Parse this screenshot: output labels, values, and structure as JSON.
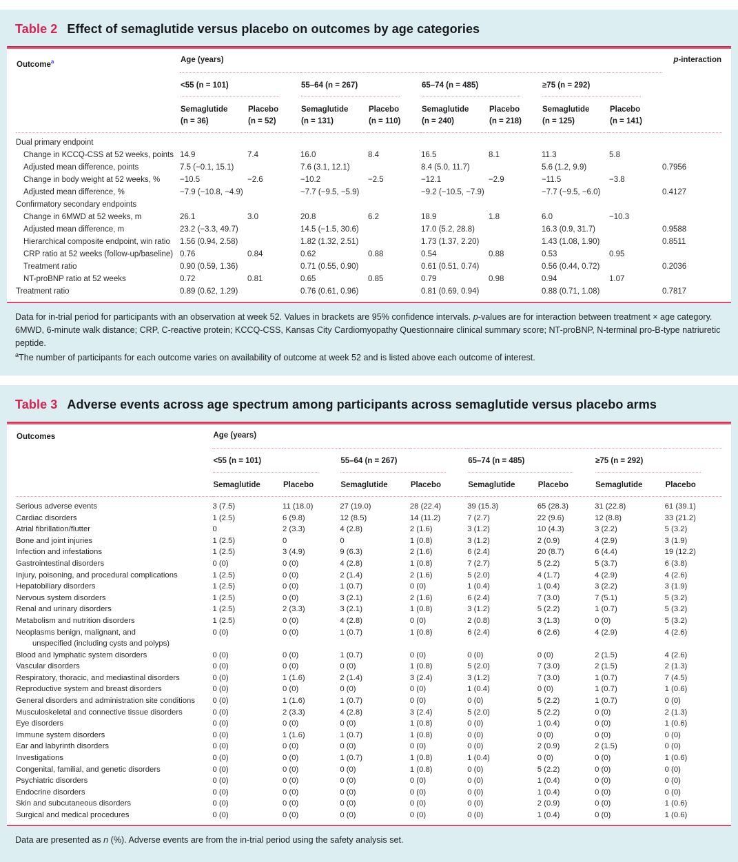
{
  "colors": {
    "accent_red": "#d62350",
    "rule_red": "#d84a68",
    "card_bg": "#dceef2",
    "dotted_pink": "#e597ab",
    "superscript_blue": "#3a3ae0"
  },
  "table2": {
    "label": "Table 2",
    "title": "Effect of semaglutide versus placebo on outcomes by age categories",
    "columns": {
      "outcome_header": "Outcome",
      "outcome_sup": "a",
      "age_header": "Age (years)",
      "p_header": "p-interaction",
      "groups": [
        {
          "range": "<55 (n = 101)",
          "arms": [
            {
              "name": "Semaglutide",
              "n": "(n = 36)"
            },
            {
              "name": "Placebo",
              "n": "(n = 52)"
            }
          ]
        },
        {
          "range": "55–64 (n = 267)",
          "arms": [
            {
              "name": "Semaglutide",
              "n": "(n = 131)"
            },
            {
              "name": "Placebo",
              "n": "(n = 110)"
            }
          ]
        },
        {
          "range": "65–74 (n = 485)",
          "arms": [
            {
              "name": "Semaglutide",
              "n": "(n = 240)"
            },
            {
              "name": "Placebo",
              "n": "(n = 218)"
            }
          ]
        },
        {
          "range": "≥75 (n = 292)",
          "arms": [
            {
              "name": "Semaglutide",
              "n": "(n = 125)"
            },
            {
              "name": "Placebo",
              "n": "(n = 141)"
            }
          ]
        }
      ]
    },
    "rows": [
      {
        "type": "section",
        "label": "Dual primary endpoint"
      },
      {
        "type": "data",
        "indent": true,
        "label": "Change in KCCQ-CSS at 52 weeks, points",
        "cells": [
          "14.9",
          "7.4",
          "16.0",
          "8.4",
          "16.5",
          "8.1",
          "11.3",
          "5.8"
        ],
        "p": ""
      },
      {
        "type": "data",
        "indent": true,
        "label": "Adjusted mean difference, points",
        "cells": [
          "7.5 (−0.1, 15.1)",
          "",
          "7.6 (3.1, 12.1)",
          "",
          "8.4 (5.0, 11.7)",
          "",
          "5.6 (1.2, 9.9)",
          ""
        ],
        "p": "0.7956"
      },
      {
        "type": "data",
        "indent": true,
        "label": "Change in body weight at 52 weeks, %",
        "cells": [
          "−10.5",
          "−2.6",
          "−10.2",
          "−2.5",
          "−12.1",
          "−2.9",
          "−11.5",
          "−3.8"
        ],
        "p": ""
      },
      {
        "type": "data",
        "indent": true,
        "label": "Adjusted mean difference, %",
        "cells": [
          "−7.9 (−10.8, −4.9)",
          "",
          "−7.7 (−9.5, −5.9)",
          "",
          "−9.2 (−10.5, −7.9)",
          "",
          "−7.7 (−9.5, −6.0)",
          ""
        ],
        "p": "0.4127"
      },
      {
        "type": "section",
        "label": "Confirmatory secondary endpoints"
      },
      {
        "type": "data",
        "indent": true,
        "label": "Change in 6MWD at 52 weeks, m",
        "cells": [
          "26.1",
          "3.0",
          "20.8",
          "6.2",
          "18.9",
          "1.8",
          "6.0",
          "−10.3"
        ],
        "p": ""
      },
      {
        "type": "data",
        "indent": true,
        "label": "Adjusted mean difference, m",
        "cells": [
          "23.2 (−3.3, 49.7)",
          "",
          "14.5 (−1.5, 30.6)",
          "",
          "17.0 (5.2, 28.8)",
          "",
          "16.3 (0.9, 31.7)",
          ""
        ],
        "p": "0.9588"
      },
      {
        "type": "data",
        "indent": true,
        "label": "Hierarchical composite endpoint, win ratio",
        "cells": [
          "1.56 (0.94, 2.58)",
          "",
          "1.82 (1.32, 2.51)",
          "",
          "1.73 (1.37, 2.20)",
          "",
          "1.43 (1.08, 1.90)",
          ""
        ],
        "p": "0.8511"
      },
      {
        "type": "data",
        "indent": true,
        "label": "CRP ratio at 52 weeks (follow-up/baseline)",
        "cells": [
          "0.76",
          "0.84",
          "0.62",
          "0.88",
          "0.54",
          "0.88",
          "0.53",
          "0.95"
        ],
        "p": ""
      },
      {
        "type": "data",
        "indent": true,
        "label": "Treatment ratio",
        "cells": [
          "0.90 (0.59, 1.36)",
          "",
          "0.71 (0.55, 0.90)",
          "",
          "0.61 (0.51, 0.74)",
          "",
          "0.56 (0.44, 0.72)",
          ""
        ],
        "p": "0.2036"
      },
      {
        "type": "data",
        "indent": true,
        "label": "NT-proBNP ratio at 52 weeks",
        "cells": [
          "0.72",
          "0.81",
          "0.65",
          "0.85",
          "0.79",
          "0.98",
          "0.94",
          "1.07"
        ],
        "p": ""
      },
      {
        "type": "data",
        "indent": false,
        "label": "Treatment ratio",
        "cells": [
          "0.89 (0.62, 1.29)",
          "",
          "0.76 (0.61, 0.96)",
          "",
          "0.81 (0.69, 0.94)",
          "",
          "0.88 (0.71, 1.08)",
          ""
        ],
        "p": "0.7817"
      }
    ],
    "footnote1_parts": [
      {
        "style": "normal",
        "text": "Data for in-trial period for participants with an observation at week 52. Values in brackets are 95% confidence intervals. "
      },
      {
        "style": "italic",
        "text": "p"
      },
      {
        "style": "normal",
        "text": "-values are for interaction between treatment × age category. 6MWD, 6-minute walk distance; CRP, C-reactive protein; KCCQ-CSS, Kansas City Cardiomyopathy Questionnaire clinical summary score; NT-proBNP, N-terminal pro-B-type natriuretic peptide."
      }
    ],
    "footnote2_parts": [
      {
        "style": "sup",
        "text": "a"
      },
      {
        "style": "normal",
        "text": "The number of participants for each outcome varies on availability of outcome at week 52 and is listed above each outcome of interest."
      }
    ]
  },
  "table3": {
    "label": "Table 3",
    "title": "Adverse events across age spectrum among participants across semaglutide versus placebo arms",
    "columns": {
      "outcome_header": "Outcomes",
      "age_header": "Age (years)",
      "groups": [
        {
          "range": "<55 (n = 101)",
          "arms": [
            {
              "name": "Semaglutide"
            },
            {
              "name": "Placebo"
            }
          ]
        },
        {
          "range": "55–64 (n = 267)",
          "arms": [
            {
              "name": "Semaglutide"
            },
            {
              "name": "Placebo"
            }
          ]
        },
        {
          "range": "65–74 (n = 485)",
          "arms": [
            {
              "name": "Semaglutide"
            },
            {
              "name": "Placebo"
            }
          ]
        },
        {
          "range": "≥75 (n = 292)",
          "arms": [
            {
              "name": "Semaglutide"
            },
            {
              "name": "Placebo"
            }
          ]
        }
      ]
    },
    "rows": [
      {
        "type": "data",
        "label": "Serious adverse events",
        "cells": [
          "3 (7.5)",
          "11 (18.0)",
          "27 (19.0)",
          "28 (22.4)",
          "39 (15.3)",
          "65 (28.3)",
          "31 (22.8)",
          "61 (39.1)"
        ]
      },
      {
        "type": "data",
        "label": "Cardiac disorders",
        "cells": [
          "1 (2.5)",
          "6 (9.8)",
          "12 (8.5)",
          "14 (11.2)",
          "7 (2.7)",
          "22 (9.6)",
          "12 (8.8)",
          "33 (21.2)"
        ]
      },
      {
        "type": "data",
        "label": "Atrial fibrillation/flutter",
        "cells": [
          "0",
          "2 (3.3)",
          "4 (2.8)",
          "2 (1.6)",
          "3 (1.2)",
          "10 (4.3)",
          "3 (2.2)",
          "5 (3.2)"
        ]
      },
      {
        "type": "data",
        "label": "Bone and joint injuries",
        "cells": [
          "1 (2.5)",
          "0",
          "0",
          "1 (0.8)",
          "3 (1.2)",
          "2 (0.9)",
          "4 (2.9)",
          "3 (1.9)"
        ]
      },
      {
        "type": "data",
        "label": "Infection and infestations",
        "cells": [
          "1 (2.5)",
          "3 (4.9)",
          "9 (6.3)",
          "2 (1.6)",
          "6 (2.4)",
          "20 (8.7)",
          "6 (4.4)",
          "19 (12.2)"
        ]
      },
      {
        "type": "data",
        "label": "Gastrointestinal disorders",
        "cells": [
          "0 (0)",
          "0 (0)",
          "4 (2.8)",
          "1 (0.8)",
          "7 (2.7)",
          "5 (2.2)",
          "5 (3.7)",
          "6 (3.8)"
        ]
      },
      {
        "type": "data",
        "label": "Injury, poisoning, and procedural complications",
        "cells": [
          "1 (2.5)",
          "0 (0)",
          "2 (1.4)",
          "2 (1.6)",
          "5 (2.0)",
          "4 (1.7)",
          "4 (2.9)",
          "4 (2.6)"
        ]
      },
      {
        "type": "data",
        "label": "Hepatobiliary disorders",
        "cells": [
          "1 (2.5)",
          "0 (0)",
          "1 (0.7)",
          "0 (0)",
          "1 (0.4)",
          "1 (0.4)",
          "3 (2.2)",
          "3 (1.9)"
        ]
      },
      {
        "type": "data",
        "label": "Nervous system disorders",
        "cells": [
          "1 (2.5)",
          "0 (0)",
          "3 (2.1)",
          "2 (1.6)",
          "6 (2.4)",
          "7 (3.0)",
          "7 (5.1)",
          "5 (3.2)"
        ]
      },
      {
        "type": "data",
        "label": "Renal and urinary disorders",
        "cells": [
          "1 (2.5)",
          "2 (3.3)",
          "3 (2.1)",
          "1 (0.8)",
          "3 (1.2)",
          "5 (2.2)",
          "1 (0.7)",
          "5 (3.2)"
        ]
      },
      {
        "type": "data",
        "label": "Metabolism and nutrition disorders",
        "cells": [
          "1 (2.5)",
          "0 (0)",
          "4 (2.8)",
          "0 (0)",
          "2 (0.8)",
          "3 (1.3)",
          "0 (0)",
          "5 (3.2)"
        ]
      },
      {
        "type": "data",
        "label": "Neoplasms benign, malignant, and",
        "cells": [
          "0 (0)",
          "0 (0)",
          "1 (0.7)",
          "1 (0.8)",
          "6 (2.4)",
          "6 (2.6)",
          "4 (2.9)",
          "4 (2.6)"
        ]
      },
      {
        "type": "continuation",
        "label": "unspecified (including cysts and polyps)"
      },
      {
        "type": "data",
        "label": "Blood and lymphatic system disorders",
        "cells": [
          "0 (0)",
          "0 (0)",
          "1 (0.7)",
          "0 (0)",
          "0 (0)",
          "0 (0)",
          "2 (1.5)",
          "4 (2.6)"
        ]
      },
      {
        "type": "data",
        "label": "Vascular disorders",
        "cells": [
          "0 (0)",
          "0 (0)",
          "0 (0)",
          "1 (0.8)",
          "5 (2.0)",
          "7 (3.0)",
          "2 (1.5)",
          "2 (1.3)"
        ]
      },
      {
        "type": "data",
        "label": "Respiratory, thoracic, and mediastinal disorders",
        "cells": [
          "0 (0)",
          "1 (1.6)",
          "2 (1.4)",
          "3 (2.4)",
          "3 (1.2)",
          "7 (3.0)",
          "1 (0.7)",
          "7 (4.5)"
        ]
      },
      {
        "type": "data",
        "label": "Reproductive system and breast disorders",
        "cells": [
          "0 (0)",
          "0 (0)",
          "0 (0)",
          "0 (0)",
          "1 (0.4)",
          "0 (0)",
          "1 (0.7)",
          "1 (0.6)"
        ]
      },
      {
        "type": "data",
        "label": "General disorders and administration site conditions",
        "cells": [
          "0 (0)",
          "1 (1.6)",
          "1 (0.7)",
          "0 (0)",
          "0 (0)",
          "5 (2.2)",
          "1 (0.7)",
          "0 (0)"
        ]
      },
      {
        "type": "data",
        "label": "Musculoskeletal and connective tissue disorders",
        "cells": [
          "0 (0)",
          "2 (3.3)",
          "4 (2.8)",
          "3 (2.4)",
          "5 (2.0)",
          "5 (2.2)",
          "0 (0)",
          "2 (1.3)"
        ]
      },
      {
        "type": "data",
        "label": "Eye disorders",
        "cells": [
          "0 (0)",
          "0 (0)",
          "0 (0)",
          "1 (0.8)",
          "0 (0)",
          "1 (0.4)",
          "0 (0)",
          "1 (0.6)"
        ]
      },
      {
        "type": "data",
        "label": "Immune system disorders",
        "cells": [
          "0 (0)",
          "1 (1.6)",
          "1 (0.7)",
          "1 (0.8)",
          "0 (0)",
          "0 (0)",
          "0 (0)",
          "0 (0)"
        ]
      },
      {
        "type": "data",
        "label": "Ear and labyrinth disorders",
        "cells": [
          "0 (0)",
          "0 (0)",
          "0 (0)",
          "0 (0)",
          "0 (0)",
          "2 (0.9)",
          "2 (1.5)",
          "0 (0)"
        ]
      },
      {
        "type": "data",
        "label": "Investigations",
        "cells": [
          "0 (0)",
          "0 (0)",
          "1 (0.7)",
          "1 (0.8)",
          "1 (0.4)",
          "0 (0)",
          "0 (0)",
          "1 (0.6)"
        ]
      },
      {
        "type": "data",
        "label": "Congenital, familial, and genetic disorders",
        "cells": [
          "0 (0)",
          "0 (0)",
          "0 (0)",
          "1 (0.8)",
          "0 (0)",
          "5 (2.2)",
          "0 (0)",
          "0 (0)"
        ]
      },
      {
        "type": "data",
        "label": "Psychiatric disorders",
        "cells": [
          "0 (0)",
          "0 (0)",
          "0 (0)",
          "0 (0)",
          "0 (0)",
          "1 (0.4)",
          "0 (0)",
          "0 (0)"
        ]
      },
      {
        "type": "data",
        "label": "Endocrine disorders",
        "cells": [
          "0 (0)",
          "0 (0)",
          "0 (0)",
          "0 (0)",
          "0 (0)",
          "1 (0.4)",
          "0 (0)",
          "0 (0)"
        ]
      },
      {
        "type": "data",
        "label": "Skin and subcutaneous disorders",
        "cells": [
          "0 (0)",
          "0 (0)",
          "0 (0)",
          "0 (0)",
          "0 (0)",
          "2 (0.9)",
          "0 (0)",
          "1 (0.6)"
        ]
      },
      {
        "type": "data",
        "label": "Surgical and medical procedures",
        "cells": [
          "0 (0)",
          "0 (0)",
          "0 (0)",
          "0 (0)",
          "0 (0)",
          "1 (0.4)",
          "0 (0)",
          "1 (0.6)"
        ]
      }
    ],
    "footnote_parts": [
      {
        "style": "normal",
        "text": "Data are presented as "
      },
      {
        "style": "italic",
        "text": "n"
      },
      {
        "style": "normal",
        "text": " (%). Adverse events are from the in-trial period using the safety analysis set."
      }
    ]
  }
}
